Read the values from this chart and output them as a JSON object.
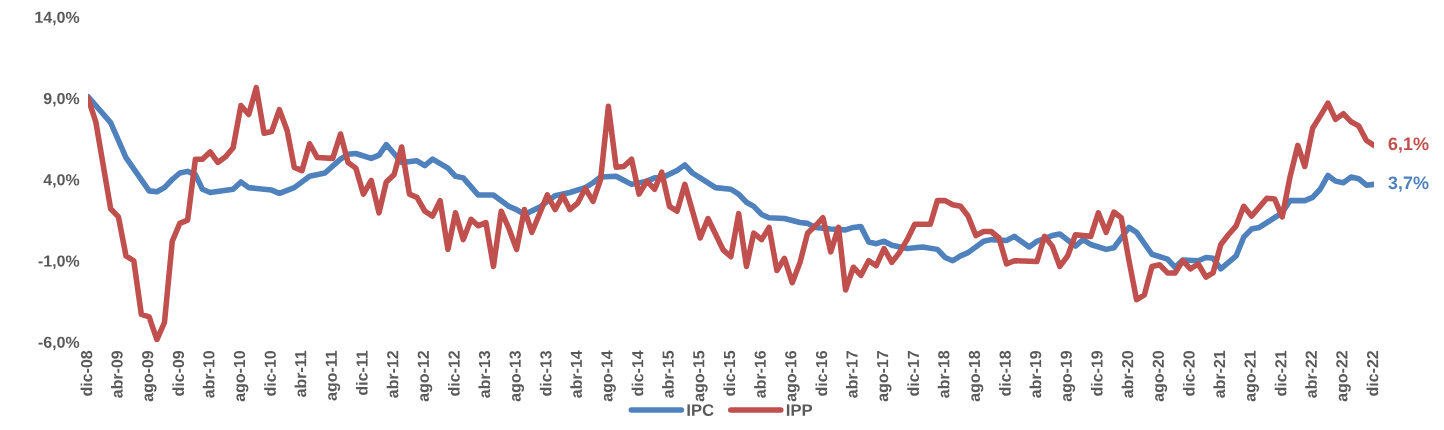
{
  "chart_data": {
    "type": "line",
    "xlim": [
      "2008-12",
      "2022-12"
    ],
    "ylim": [
      -6,
      14
    ],
    "yticks": [
      {
        "value": -6,
        "label": "-6,0%"
      },
      {
        "value": -1,
        "label": "-1,0%"
      },
      {
        "value": 4,
        "label": "4,0%"
      },
      {
        "value": 9,
        "label": "9,0%"
      },
      {
        "value": 14,
        "label": "14,0%"
      }
    ],
    "xticks": [
      {
        "value": "2008-12",
        "label": "dic-08"
      },
      {
        "value": "2009-04",
        "label": "abr-09"
      },
      {
        "value": "2009-08",
        "label": "ago-09"
      },
      {
        "value": "2009-12",
        "label": "dic-09"
      },
      {
        "value": "2010-04",
        "label": "abr-10"
      },
      {
        "value": "2010-08",
        "label": "ago-10"
      },
      {
        "value": "2010-12",
        "label": "dic-10"
      },
      {
        "value": "2011-04",
        "label": "abr-11"
      },
      {
        "value": "2011-08",
        "label": "ago-11"
      },
      {
        "value": "2011-12",
        "label": "dic-11"
      },
      {
        "value": "2012-04",
        "label": "abr-12"
      },
      {
        "value": "2012-08",
        "label": "ago-12"
      },
      {
        "value": "2012-12",
        "label": "dic-12"
      },
      {
        "value": "2013-04",
        "label": "abr-13"
      },
      {
        "value": "2013-08",
        "label": "ago-13"
      },
      {
        "value": "2013-12",
        "label": "dic-13"
      },
      {
        "value": "2014-04",
        "label": "abr-14"
      },
      {
        "value": "2014-08",
        "label": "ago-14"
      },
      {
        "value": "2014-12",
        "label": "dic-14"
      },
      {
        "value": "2015-04",
        "label": "abr-15"
      },
      {
        "value": "2015-08",
        "label": "ago-15"
      },
      {
        "value": "2015-12",
        "label": "dic-15"
      },
      {
        "value": "2016-04",
        "label": "abr-16"
      },
      {
        "value": "2016-08",
        "label": "ago-16"
      },
      {
        "value": "2016-12",
        "label": "dic-16"
      },
      {
        "value": "2017-04",
        "label": "abr-17"
      },
      {
        "value": "2017-08",
        "label": "ago-17"
      },
      {
        "value": "2017-12",
        "label": "dic-17"
      },
      {
        "value": "2018-04",
        "label": "abr-18"
      },
      {
        "value": "2018-08",
        "label": "ago-18"
      },
      {
        "value": "2018-12",
        "label": "dic-18"
      },
      {
        "value": "2019-04",
        "label": "abr-19"
      },
      {
        "value": "2019-08",
        "label": "ago-19"
      },
      {
        "value": "2019-12",
        "label": "dic-19"
      },
      {
        "value": "2020-04",
        "label": "abr-20"
      },
      {
        "value": "2020-08",
        "label": "ago-20"
      },
      {
        "value": "2020-12",
        "label": "dic-20"
      },
      {
        "value": "2021-04",
        "label": "abr-21"
      },
      {
        "value": "2021-08",
        "label": "ago-21"
      },
      {
        "value": "2021-12",
        "label": "dic-21"
      },
      {
        "value": "2022-04",
        "label": "abr-22"
      },
      {
        "value": "2022-08",
        "label": "ago-22"
      },
      {
        "value": "2022-12",
        "label": "dic-22"
      }
    ],
    "grid": false,
    "legend": "bottom",
    "line_style": "solid",
    "marker": "none",
    "series": [
      {
        "name": "IPC",
        "color": "#4f81bd",
        "x": [
          "2008-12",
          "2009-03",
          "2009-05",
          "2009-08",
          "2009-09",
          "2009-10",
          "2009-11",
          "2009-12",
          "2010-01",
          "2010-02",
          "2010-03",
          "2010-04",
          "2010-07",
          "2010-08",
          "2010-09",
          "2010-12",
          "2011-01",
          "2011-03",
          "2011-05",
          "2011-07",
          "2011-09",
          "2011-10",
          "2011-11",
          "2012-01",
          "2012-02",
          "2012-03",
          "2012-05",
          "2012-07",
          "2012-08",
          "2012-09",
          "2012-11",
          "2012-12",
          "2013-01",
          "2013-03",
          "2013-05",
          "2013-07",
          "2013-08",
          "2013-09",
          "2013-11",
          "2014-01",
          "2014-03",
          "2014-05",
          "2014-06",
          "2014-07",
          "2014-09",
          "2014-10",
          "2014-11",
          "2015-01",
          "2015-02",
          "2015-03",
          "2015-05",
          "2015-06",
          "2015-07",
          "2015-08",
          "2015-10",
          "2015-12",
          "2016-01",
          "2016-02",
          "2016-03",
          "2016-04",
          "2016-05",
          "2016-07",
          "2016-09",
          "2016-10",
          "2016-11",
          "2017-01",
          "2017-03",
          "2017-04",
          "2017-05",
          "2017-06",
          "2017-07",
          "2017-08",
          "2017-09",
          "2017-11",
          "2018-01",
          "2018-03",
          "2018-04",
          "2018-05",
          "2018-06",
          "2018-07",
          "2018-09",
          "2018-10",
          "2018-12",
          "2019-01",
          "2019-03",
          "2019-04",
          "2019-06",
          "2019-07",
          "2019-09",
          "2019-10",
          "2019-11",
          "2020-01",
          "2020-02",
          "2020-04",
          "2020-05",
          "2020-07",
          "2020-09",
          "2020-10",
          "2020-11",
          "2021-01",
          "2021-02",
          "2021-03",
          "2021-04",
          "2021-06",
          "2021-07",
          "2021-08",
          "2021-09",
          "2021-11",
          "2021-12",
          "2022-01",
          "2022-03",
          "2022-04",
          "2022-05",
          "2022-06",
          "2022-07",
          "2022-08",
          "2022-09",
          "2022-10",
          "2022-11",
          "2022-12"
        ],
        "values": [
          9.1,
          7.5,
          5.35,
          3.3,
          3.25,
          3.5,
          4.0,
          4.4,
          4.5,
          4.3,
          3.4,
          3.2,
          3.4,
          3.85,
          3.5,
          3.35,
          3.15,
          3.5,
          4.2,
          4.4,
          5.25,
          5.55,
          5.6,
          5.3,
          5.5,
          6.15,
          5.05,
          5.15,
          4.85,
          5.25,
          4.7,
          4.2,
          4.1,
          3.05,
          3.05,
          2.35,
          2.15,
          1.85,
          2.3,
          3.0,
          3.2,
          3.5,
          3.8,
          4.15,
          4.2,
          3.95,
          3.7,
          3.9,
          4.1,
          4.1,
          4.55,
          4.9,
          4.4,
          4.1,
          3.5,
          3.4,
          3.1,
          2.6,
          2.35,
          1.85,
          1.65,
          1.6,
          1.35,
          1.3,
          1.05,
          0.95,
          0.9,
          1.05,
          1.1,
          0.15,
          0.05,
          0.2,
          -0.05,
          -0.25,
          -0.15,
          -0.3,
          -0.8,
          -1.0,
          -0.7,
          -0.5,
          0.2,
          0.3,
          0.25,
          0.5,
          -0.15,
          0.2,
          0.55,
          0.65,
          -0.1,
          0.3,
          0.0,
          -0.3,
          -0.2,
          1.05,
          0.75,
          -0.6,
          -0.9,
          -1.4,
          -0.95,
          -1.0,
          -0.8,
          -0.85,
          -1.5,
          -0.7,
          0.45,
          0.95,
          1.05,
          1.65,
          1.95,
          2.7,
          2.7,
          2.9,
          3.4,
          4.25,
          3.9,
          3.8,
          4.15,
          4.05,
          3.65,
          3.7
        ]
      },
      {
        "name": "IPP",
        "color": "#c0504d",
        "x": [
          "2008-12",
          "2009-01",
          "2009-03",
          "2009-04",
          "2009-05",
          "2009-06",
          "2009-07",
          "2009-08",
          "2009-09",
          "2009-10",
          "2009-11",
          "2009-12",
          "2010-01",
          "2010-02",
          "2010-03",
          "2010-04",
          "2010-05",
          "2010-06",
          "2010-07",
          "2010-08",
          "2010-09",
          "2010-10",
          "2010-11",
          "2010-12",
          "2011-01",
          "2011-02",
          "2011-03",
          "2011-04",
          "2011-05",
          "2011-06",
          "2011-08",
          "2011-09",
          "2011-10",
          "2011-11",
          "2011-12",
          "2012-01",
          "2012-02",
          "2012-03",
          "2012-04",
          "2012-05",
          "2012-06",
          "2012-07",
          "2012-08",
          "2012-09",
          "2012-10",
          "2012-11",
          "2012-12",
          "2013-01",
          "2013-02",
          "2013-03",
          "2013-04",
          "2013-05",
          "2013-06",
          "2013-07",
          "2013-08",
          "2013-09",
          "2013-10",
          "2013-12",
          "2014-01",
          "2014-02",
          "2014-03",
          "2014-04",
          "2014-05",
          "2014-06",
          "2014-07",
          "2014-08",
          "2014-09",
          "2014-10",
          "2014-11",
          "2014-12",
          "2015-01",
          "2015-02",
          "2015-03",
          "2015-04",
          "2015-05",
          "2015-06",
          "2015-08",
          "2015-09",
          "2015-11",
          "2015-12",
          "2016-01",
          "2016-02",
          "2016-03",
          "2016-04",
          "2016-05",
          "2016-06",
          "2016-07",
          "2016-08",
          "2016-09",
          "2016-10",
          "2016-11",
          "2016-12",
          "2017-01",
          "2017-02",
          "2017-03",
          "2017-04",
          "2017-05",
          "2017-06",
          "2017-07",
          "2017-08",
          "2017-09",
          "2017-10",
          "2017-11",
          "2017-12",
          "2018-02",
          "2018-03",
          "2018-04",
          "2018-05",
          "2018-06",
          "2018-07",
          "2018-08",
          "2018-09",
          "2018-10",
          "2018-11",
          "2018-12",
          "2019-01",
          "2019-04",
          "2019-05",
          "2019-06",
          "2019-07",
          "2019-08",
          "2019-09",
          "2019-11",
          "2019-12",
          "2020-01",
          "2020-02",
          "2020-03",
          "2020-04",
          "2020-05",
          "2020-06",
          "2020-07",
          "2020-08",
          "2020-09",
          "2020-10",
          "2020-11",
          "2020-12",
          "2021-01",
          "2021-02",
          "2021-03",
          "2021-04",
          "2021-05",
          "2021-06",
          "2021-07",
          "2021-08",
          "2021-09",
          "2021-10",
          "2021-11",
          "2021-12",
          "2022-01",
          "2022-02",
          "2022-03",
          "2022-04",
          "2022-05",
          "2022-06",
          "2022-07",
          "2022-08",
          "2022-09",
          "2022-10",
          "2022-11",
          "2022-12"
        ],
        "values": [
          9.0,
          7.55,
          2.2,
          1.7,
          -0.7,
          -1.0,
          -4.3,
          -4.45,
          -5.85,
          -4.8,
          0.2,
          1.3,
          1.5,
          5.25,
          5.25,
          5.7,
          5.05,
          5.4,
          5.95,
          8.55,
          8.0,
          9.65,
          6.85,
          6.95,
          8.3,
          7.0,
          4.75,
          4.55,
          6.2,
          5.35,
          5.3,
          6.8,
          5.05,
          4.7,
          3.1,
          3.95,
          1.95,
          3.85,
          4.3,
          6.0,
          3.1,
          2.9,
          2.05,
          1.75,
          2.7,
          -0.3,
          1.95,
          0.3,
          1.55,
          1.15,
          1.35,
          -1.35,
          2.05,
          1.0,
          -0.3,
          2.15,
          0.75,
          3.05,
          2.15,
          3.0,
          2.15,
          2.55,
          3.45,
          2.65,
          4.0,
          8.5,
          4.75,
          4.8,
          5.25,
          3.1,
          3.9,
          3.4,
          4.45,
          2.35,
          2.05,
          3.7,
          0.4,
          1.6,
          -0.35,
          -0.75,
          1.9,
          -1.35,
          0.7,
          0.3,
          1.05,
          -1.6,
          -0.85,
          -2.35,
          -1.1,
          0.7,
          1.15,
          1.65,
          -0.45,
          1.05,
          -2.8,
          -1.4,
          -1.9,
          -1.0,
          -1.3,
          -0.25,
          -1.1,
          -0.5,
          0.3,
          1.25,
          1.25,
          2.7,
          2.7,
          2.45,
          2.35,
          1.75,
          0.55,
          0.8,
          0.8,
          0.4,
          -1.2,
          -1.0,
          -1.05,
          0.5,
          -0.1,
          -1.35,
          -0.7,
          0.6,
          0.5,
          1.95,
          0.75,
          2.0,
          1.65,
          -1.0,
          -3.4,
          -3.1,
          -1.35,
          -1.25,
          -1.75,
          -1.75,
          -1.0,
          -1.5,
          -1.2,
          -2.0,
          -1.75,
          0.0,
          0.6,
          1.15,
          2.35,
          1.75,
          2.3,
          2.85,
          2.8,
          1.7,
          4.15,
          6.1,
          4.8,
          7.15,
          7.9,
          8.7,
          7.7,
          8.05,
          7.55,
          7.3,
          6.4,
          6.1
        ]
      }
    ],
    "annotations": [
      {
        "text": "6,1%",
        "x": "2022-12",
        "y": 6.1
      },
      {
        "text": "3,7%",
        "x": "2022-12",
        "y": 3.7
      }
    ]
  }
}
